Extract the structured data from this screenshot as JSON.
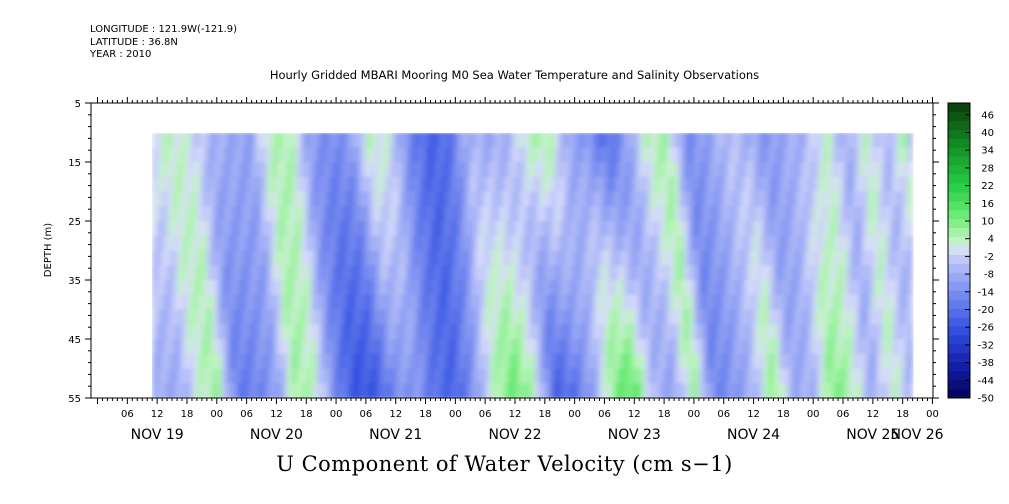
{
  "header": {
    "longitude": "LONGITUDE : 121.9W(-121.9)",
    "latitude": "LATITUDE : 36.8N",
    "year": "YEAR : 2010"
  },
  "chart_data": {
    "type": "heatmap",
    "title": "Hourly Gridded MBARI Mooring M0 Sea Water Temperature and Salinity Observations",
    "xlabel": "U Component of Water Velocity (cm s−1)",
    "ylabel": "DEPTH (m)",
    "ylim": [
      5,
      55
    ],
    "y_inverted": true,
    "y_ticks": [
      "5",
      "15",
      "25",
      "35",
      "45",
      "55"
    ],
    "x_hour_ticks": [
      "06",
      "12",
      "18",
      "00",
      "06",
      "12",
      "18",
      "00",
      "06",
      "12",
      "18",
      "00",
      "06",
      "12",
      "18",
      "00",
      "06",
      "12",
      "18",
      "00",
      "06",
      "12",
      "18",
      "00",
      "06",
      "12",
      "18",
      "00",
      "06",
      "12",
      "18",
      "00"
    ],
    "x_day_labels": [
      "NOV 19",
      "NOV 20",
      "NOV 21",
      "NOV 22",
      "NOV 23",
      "NOV 24",
      "NOV 25",
      "NOV 26"
    ],
    "data_depth_range": [
      10,
      55
    ],
    "data_time_range": [
      "NOV 19 11:00",
      "NOV 26 04:00"
    ],
    "colorbar": {
      "labels": [
        "46",
        "40",
        "34",
        "28",
        "22",
        "16",
        "10",
        "4",
        "-2",
        "-8",
        "-14",
        "-20",
        "-26",
        "-32",
        "-38",
        "-44",
        "-50"
      ],
      "min": -50,
      "max": 50,
      "step": 3
    },
    "velocity_profile_cm_s": {
      "note_depths_m": [
        10,
        55
      ],
      "hours_from_nov19_00": [
        11,
        14,
        18,
        22,
        26,
        30,
        34,
        38,
        42,
        46,
        50,
        54,
        58,
        62,
        66,
        70,
        74,
        78,
        82,
        86,
        90,
        94,
        98,
        102,
        106,
        110,
        114,
        118,
        122,
        126,
        130,
        134,
        138,
        142,
        146,
        150,
        154,
        158,
        162,
        164
      ],
      "surface": [
        1,
        4,
        1,
        -6,
        -8,
        -10,
        4,
        6,
        -10,
        -14,
        -12,
        4,
        1,
        -14,
        -22,
        -20,
        -6,
        -8,
        -6,
        4,
        6,
        -8,
        -12,
        -20,
        -10,
        4,
        6,
        -14,
        -10,
        -4,
        -6,
        -12,
        -8,
        -6,
        4,
        -8,
        4,
        -6,
        6,
        -10
      ],
      "bottom": [
        -8,
        2,
        8,
        -18,
        -16,
        -10,
        8,
        2,
        -16,
        -26,
        -24,
        -14,
        -12,
        -20,
        -22,
        -10,
        6,
        14,
        4,
        -24,
        -20,
        -8,
        12,
        16,
        -6,
        -10,
        8,
        -16,
        -12,
        -6,
        10,
        -8,
        -6,
        12,
        4,
        -8,
        4,
        -6,
        -10,
        -14
      ]
    }
  },
  "colors": {
    "positive_max": "#0a3d0a",
    "positive_light": "#c8f5c8",
    "zero": "#d8dcfa",
    "negative_max": "#000050"
  }
}
